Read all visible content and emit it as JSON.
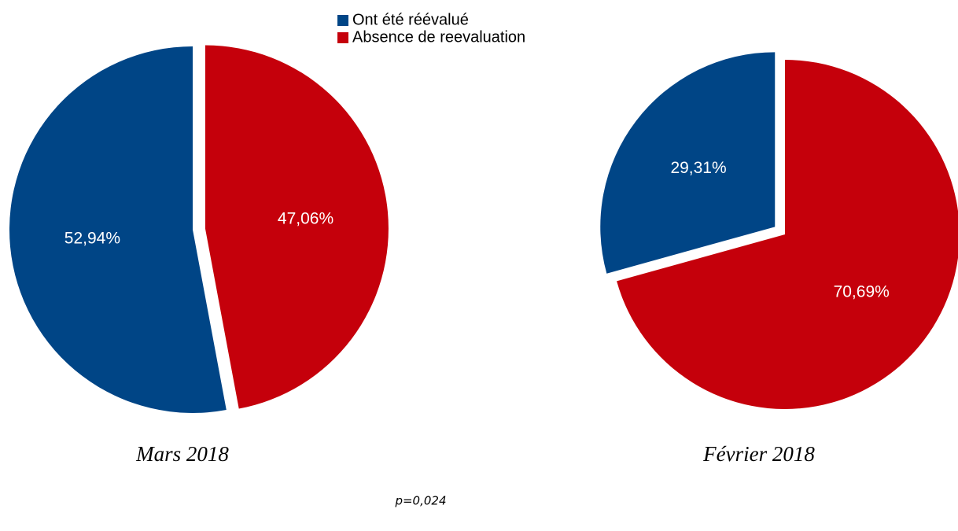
{
  "chart_data": [
    {
      "type": "pie",
      "title": "Mars 2018",
      "categories": [
        "Ont été réévalué",
        "Absence de reevaluation"
      ],
      "values": [
        52.94,
        47.06
      ],
      "value_labels": [
        "52,94%",
        "47,06%"
      ],
      "colors": [
        "#004586",
        "#c5000b"
      ]
    },
    {
      "type": "pie",
      "title": "Février 2018",
      "categories": [
        "Ont été réévalué",
        "Absence de reevaluation"
      ],
      "values": [
        29.31,
        70.69
      ],
      "value_labels": [
        "29,31%",
        "70,69%"
      ],
      "colors": [
        "#004586",
        "#c5000b"
      ]
    }
  ],
  "annotation": "p=0,024"
}
